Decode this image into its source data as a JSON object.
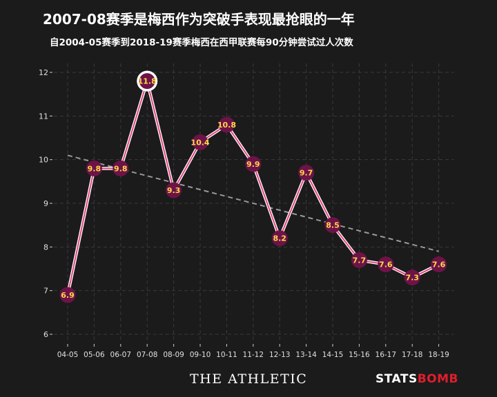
{
  "header": {
    "title": "2007-08赛季是梅西作为突破手表现最抢眼的一年",
    "subtitle": "自2004-05赛季到2018-19赛季梅西在西甲联赛每90分钟尝试过人次数"
  },
  "footer": {
    "brand_left": "THE ATHLETIC",
    "brand_right_a": "STATS",
    "brand_right_b": "BOMB"
  },
  "colors": {
    "background": "#1b1b1b",
    "line": "#e0457f",
    "marker_fill": "#6d1347",
    "label": "#ffd84a",
    "trend": "#9a9a9a",
    "grid": "#3a3a3a",
    "highlight_ring": "#ffffff"
  },
  "chart_data": {
    "type": "line",
    "title": "2007-08赛季是梅西作为突破手表现最抢眼的一年",
    "subtitle": "自2004-05赛季到2018-19赛季梅西在西甲联赛每90分钟尝试过人次数",
    "xlabel": "",
    "ylabel": "",
    "categories": [
      "04-05",
      "05-06",
      "06-07",
      "07-08",
      "08-09",
      "09-10",
      "10-11",
      "11-12",
      "12-13",
      "13-14",
      "14-15",
      "15-16",
      "16-17",
      "17-18",
      "18-19"
    ],
    "values": [
      6.9,
      9.8,
      9.8,
      11.8,
      9.3,
      10.4,
      10.8,
      9.9,
      8.2,
      9.7,
      8.5,
      7.7,
      7.6,
      7.3,
      7.6
    ],
    "value_labels": [
      "6.9",
      "9.8",
      "9.8",
      "11.8",
      "9.3",
      "10.4",
      "10.8",
      "9.9",
      "8.2",
      "9.7",
      "8.5",
      "7.7",
      "7.6",
      "7.3",
      "7.6"
    ],
    "highlight_category": "07-08",
    "trendline": {
      "start": 10.1,
      "end": 7.9
    },
    "ylim": [
      6,
      12
    ],
    "yticks": [
      6,
      7,
      8,
      9,
      10,
      11,
      12
    ],
    "grid": true,
    "legend": "none"
  }
}
